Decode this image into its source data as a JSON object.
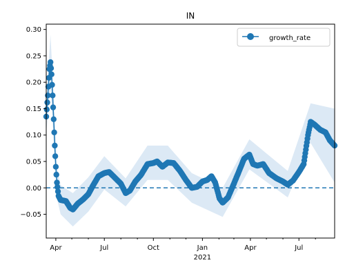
{
  "chart_data": {
    "type": "line",
    "title": "IN",
    "xlabel": "",
    "ylabel": "",
    "legend_position": "top-right",
    "grid": false,
    "x_range": [
      "2020-03-14",
      "2021-09-06"
    ],
    "ylim": [
      -0.095,
      0.31
    ],
    "y_ticks": [
      -0.05,
      0.0,
      0.05,
      0.1,
      0.15,
      0.2,
      0.25,
      0.3
    ],
    "y_tick_labels": [
      "−0.05",
      "0.00",
      "0.05",
      "0.10",
      "0.15",
      "0.20",
      "0.25",
      "0.30"
    ],
    "x_major_ticks": [
      {
        "date": "2020-04-01",
        "label": "Apr",
        "sublabel": ""
      },
      {
        "date": "2020-07-01",
        "label": "Jul",
        "sublabel": ""
      },
      {
        "date": "2020-10-01",
        "label": "Oct",
        "sublabel": ""
      },
      {
        "date": "2021-01-01",
        "label": "Jan",
        "sublabel": "2021"
      },
      {
        "date": "2021-04-01",
        "label": "Apr",
        "sublabel": ""
      },
      {
        "date": "2021-07-01",
        "label": "Jul",
        "sublabel": ""
      }
    ],
    "x_minor_ticks": [
      "2020-05-01",
      "2020-06-01",
      "2020-08-01",
      "2020-09-01",
      "2020-11-01",
      "2020-12-01",
      "2021-02-01",
      "2021-03-01",
      "2021-05-01",
      "2021-06-01",
      "2021-08-01"
    ],
    "reference_line": {
      "y": 0.0,
      "style": "dashed"
    },
    "colors": {
      "series": "#1f77b4",
      "band": "#dce9f5",
      "reference": "#1f77b4"
    },
    "series": [
      {
        "name": "growth_rate",
        "marker": "circle",
        "keypoints": [
          [
            "2020-03-14",
            0.135
          ],
          [
            "2020-03-17",
            0.175
          ],
          [
            "2020-03-20",
            0.225
          ],
          [
            "2020-03-22",
            0.238
          ],
          [
            "2020-03-24",
            0.215
          ],
          [
            "2020-03-26",
            0.175
          ],
          [
            "2020-03-28",
            0.13
          ],
          [
            "2020-03-30",
            0.08
          ],
          [
            "2020-04-01",
            0.04
          ],
          [
            "2020-04-03",
            0.01
          ],
          [
            "2020-04-06",
            -0.015
          ],
          [
            "2020-04-10",
            -0.023
          ],
          [
            "2020-04-20",
            -0.025
          ],
          [
            "2020-04-28",
            -0.038
          ],
          [
            "2020-05-03",
            -0.041
          ],
          [
            "2020-05-12",
            -0.03
          ],
          [
            "2020-05-22",
            -0.022
          ],
          [
            "2020-06-01",
            -0.012
          ],
          [
            "2020-06-10",
            0.005
          ],
          [
            "2020-06-20",
            0.022
          ],
          [
            "2020-07-01",
            0.028
          ],
          [
            "2020-07-10",
            0.03
          ],
          [
            "2020-07-20",
            0.02
          ],
          [
            "2020-08-01",
            0.008
          ],
          [
            "2020-08-10",
            -0.01
          ],
          [
            "2020-08-18",
            -0.005
          ],
          [
            "2020-08-28",
            0.012
          ],
          [
            "2020-09-08",
            0.025
          ],
          [
            "2020-09-20",
            0.045
          ],
          [
            "2020-10-01",
            0.047
          ],
          [
            "2020-10-08",
            0.05
          ],
          [
            "2020-10-18",
            0.04
          ],
          [
            "2020-10-28",
            0.048
          ],
          [
            "2020-11-08",
            0.047
          ],
          [
            "2020-11-20",
            0.032
          ],
          [
            "2020-12-01",
            0.015
          ],
          [
            "2020-12-12",
            0.0
          ],
          [
            "2020-12-22",
            0.002
          ],
          [
            "2021-01-01",
            0.012
          ],
          [
            "2021-01-10",
            0.015
          ],
          [
            "2021-01-18",
            0.022
          ],
          [
            "2021-01-25",
            0.01
          ],
          [
            "2021-02-02",
            -0.02
          ],
          [
            "2021-02-08",
            -0.028
          ],
          [
            "2021-02-18",
            -0.018
          ],
          [
            "2021-03-01",
            0.008
          ],
          [
            "2021-03-10",
            0.03
          ],
          [
            "2021-03-20",
            0.055
          ],
          [
            "2021-03-30",
            0.063
          ],
          [
            "2021-04-06",
            0.045
          ],
          [
            "2021-04-14",
            0.042
          ],
          [
            "2021-04-25",
            0.045
          ],
          [
            "2021-05-06",
            0.028
          ],
          [
            "2021-05-20",
            0.018
          ],
          [
            "2021-06-01",
            0.012
          ],
          [
            "2021-06-10",
            0.006
          ],
          [
            "2021-06-20",
            0.014
          ],
          [
            "2021-07-01",
            0.03
          ],
          [
            "2021-07-10",
            0.045
          ],
          [
            "2021-07-18",
            0.1
          ],
          [
            "2021-07-23",
            0.125
          ],
          [
            "2021-07-30",
            0.12
          ],
          [
            "2021-08-10",
            0.11
          ],
          [
            "2021-08-20",
            0.105
          ],
          [
            "2021-08-28",
            0.09
          ],
          [
            "2021-09-06",
            0.08
          ]
        ]
      }
    ],
    "uncertainty_band": [
      [
        "2020-03-14",
        0.105,
        0.165
      ],
      [
        "2020-03-22",
        0.19,
        0.29
      ],
      [
        "2020-03-28",
        0.09,
        0.17
      ],
      [
        "2020-04-03",
        -0.02,
        0.04
      ],
      [
        "2020-04-10",
        -0.05,
        0.005
      ],
      [
        "2020-05-03",
        -0.073,
        -0.01
      ],
      [
        "2020-06-01",
        -0.045,
        0.02
      ],
      [
        "2020-07-01",
        -0.003,
        0.06
      ],
      [
        "2020-08-10",
        -0.035,
        0.018
      ],
      [
        "2020-09-20",
        0.015,
        0.08
      ],
      [
        "2020-10-28",
        0.015,
        0.08
      ],
      [
        "2020-12-12",
        -0.028,
        0.028
      ],
      [
        "2021-02-08",
        -0.055,
        0.0
      ],
      [
        "2021-03-30",
        0.035,
        0.092
      ],
      [
        "2021-06-10",
        -0.018,
        0.032
      ],
      [
        "2021-07-23",
        0.085,
        0.16
      ],
      [
        "2021-09-06",
        0.01,
        0.15
      ]
    ]
  }
}
